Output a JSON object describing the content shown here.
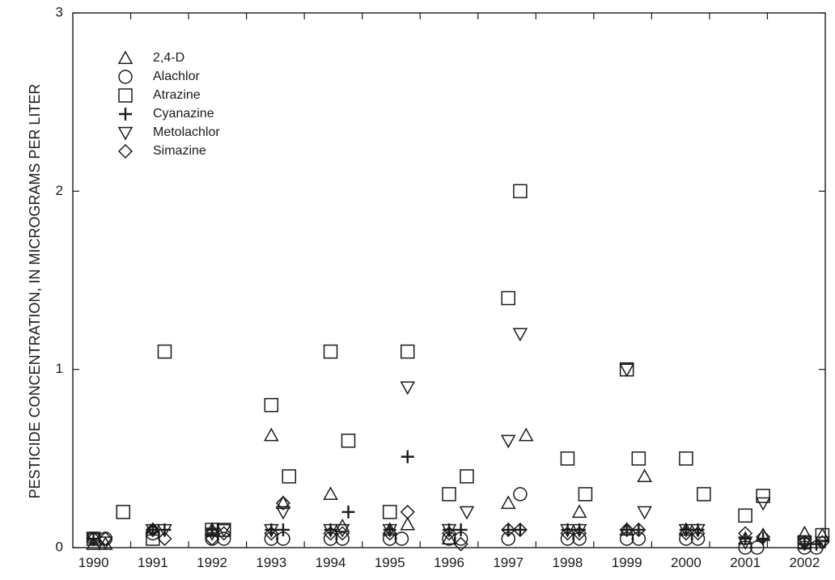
{
  "chart_data": {
    "type": "scatter",
    "title": "",
    "xlabel": "",
    "ylabel": "PESTICIDE CONCENTRATION, IN MICROGRAMS PER LITER",
    "ylim": [
      0,
      3
    ],
    "yticks": [
      0,
      1,
      2,
      3
    ],
    "xlim": [
      1989.65,
      2002.35
    ],
    "xticks": [
      1990,
      1991,
      1992,
      1993,
      1994,
      1995,
      1996,
      1997,
      1998,
      1999,
      2000,
      2001,
      2002
    ],
    "grid": false,
    "legend_position": "top-left",
    "series": [
      {
        "name": "2,4-D",
        "marker": "triangle-up",
        "points": [
          [
            1990.0,
            0.02
          ],
          [
            1990.2,
            0.02
          ],
          [
            1991.0,
            0.1
          ],
          [
            1992.0,
            0.1
          ],
          [
            1993.0,
            0.63
          ],
          [
            1993.2,
            0.25
          ],
          [
            1994.0,
            0.3
          ],
          [
            1994.2,
            0.12
          ],
          [
            1995.0,
            0.1
          ],
          [
            1995.3,
            0.13
          ],
          [
            1996.0,
            0.05
          ],
          [
            1997.0,
            0.25
          ],
          [
            1997.3,
            0.63
          ],
          [
            1998.2,
            0.2
          ],
          [
            1999.0,
            0.1
          ],
          [
            1999.3,
            0.4
          ],
          [
            2000.0,
            0.1
          ],
          [
            2001.0,
            0.05
          ],
          [
            2001.3,
            0.07
          ],
          [
            2002.0,
            0.08
          ],
          [
            2002.3,
            0.07
          ]
        ]
      },
      {
        "name": "Alachlor",
        "marker": "circle",
        "points": [
          [
            1990.0,
            0.05
          ],
          [
            1990.2,
            0.05
          ],
          [
            1991.0,
            0.08
          ],
          [
            1992.0,
            0.05
          ],
          [
            1992.2,
            0.05
          ],
          [
            1993.0,
            0.05
          ],
          [
            1993.2,
            0.05
          ],
          [
            1994.0,
            0.05
          ],
          [
            1994.2,
            0.05
          ],
          [
            1995.0,
            0.05
          ],
          [
            1995.2,
            0.05
          ],
          [
            1996.0,
            0.05
          ],
          [
            1996.2,
            0.05
          ],
          [
            1997.0,
            0.05
          ],
          [
            1997.2,
            0.3
          ],
          [
            1998.0,
            0.05
          ],
          [
            1998.2,
            0.05
          ],
          [
            1999.0,
            0.05
          ],
          [
            1999.2,
            0.05
          ],
          [
            2000.0,
            0.05
          ],
          [
            2000.2,
            0.05
          ],
          [
            2001.0,
            0.0
          ],
          [
            2001.2,
            0.0
          ],
          [
            2002.0,
            0.0
          ],
          [
            2002.2,
            0.0
          ]
        ]
      },
      {
        "name": "Atrazine",
        "marker": "square",
        "points": [
          [
            1990.0,
            0.05
          ],
          [
            1990.5,
            0.2
          ],
          [
            1991.0,
            0.05
          ],
          [
            1991.2,
            1.1
          ],
          [
            1992.0,
            0.1
          ],
          [
            1992.2,
            0.1
          ],
          [
            1993.0,
            0.8
          ],
          [
            1993.3,
            0.4
          ],
          [
            1994.0,
            1.1
          ],
          [
            1994.3,
            0.6
          ],
          [
            1995.0,
            0.2
          ],
          [
            1995.3,
            1.1
          ],
          [
            1996.0,
            0.3
          ],
          [
            1996.3,
            0.4
          ],
          [
            1997.0,
            1.4
          ],
          [
            1997.2,
            2.0
          ],
          [
            1998.0,
            0.5
          ],
          [
            1998.3,
            0.3
          ],
          [
            1999.0,
            1.0
          ],
          [
            1999.2,
            0.5
          ],
          [
            2000.0,
            0.5
          ],
          [
            2000.3,
            0.3
          ],
          [
            2001.0,
            0.18
          ],
          [
            2001.3,
            0.29
          ],
          [
            2002.0,
            0.03
          ],
          [
            2002.3,
            0.07
          ]
        ]
      },
      {
        "name": "Cyanazine",
        "marker": "plus",
        "points": [
          [
            1990.0,
            0.05
          ],
          [
            1991.0,
            0.1
          ],
          [
            1991.2,
            0.1
          ],
          [
            1992.0,
            0.1
          ],
          [
            1993.0,
            0.1
          ],
          [
            1993.2,
            0.1
          ],
          [
            1994.0,
            0.1
          ],
          [
            1994.3,
            0.2
          ],
          [
            1995.0,
            0.1
          ],
          [
            1995.3,
            0.51
          ],
          [
            1996.0,
            0.1
          ],
          [
            1996.2,
            0.1
          ],
          [
            1997.0,
            0.1
          ],
          [
            1997.2,
            0.1
          ],
          [
            1998.0,
            0.1
          ],
          [
            1998.2,
            0.1
          ],
          [
            1999.0,
            0.1
          ],
          [
            1999.2,
            0.1
          ],
          [
            2000.0,
            0.1
          ],
          [
            2000.2,
            0.1
          ],
          [
            2001.0,
            0.05
          ],
          [
            2001.3,
            0.05
          ],
          [
            2002.0,
            0.02
          ],
          [
            2002.2,
            0.02
          ]
        ]
      },
      {
        "name": "Metolachlor",
        "marker": "triangle-down",
        "points": [
          [
            1990.0,
            0.05
          ],
          [
            1990.2,
            0.03
          ],
          [
            1991.0,
            0.1
          ],
          [
            1991.2,
            0.1
          ],
          [
            1992.0,
            0.08
          ],
          [
            1992.2,
            0.1
          ],
          [
            1993.0,
            0.1
          ],
          [
            1993.2,
            0.2
          ],
          [
            1994.0,
            0.1
          ],
          [
            1994.2,
            0.1
          ],
          [
            1995.0,
            0.1
          ],
          [
            1995.3,
            0.9
          ],
          [
            1996.0,
            0.1
          ],
          [
            1996.3,
            0.2
          ],
          [
            1997.0,
            0.6
          ],
          [
            1997.2,
            1.2
          ],
          [
            1998.0,
            0.1
          ],
          [
            1998.2,
            0.1
          ],
          [
            1999.0,
            1.0
          ],
          [
            1999.3,
            0.2
          ],
          [
            2000.0,
            0.1
          ],
          [
            2000.2,
            0.1
          ],
          [
            2001.0,
            0.03
          ],
          [
            2001.3,
            0.25
          ],
          [
            2002.0,
            0.03
          ],
          [
            2002.3,
            0.03
          ]
        ]
      },
      {
        "name": "Simazine",
        "marker": "diamond",
        "points": [
          [
            1990.0,
            0.05
          ],
          [
            1990.2,
            0.05
          ],
          [
            1991.0,
            0.1
          ],
          [
            1991.2,
            0.05
          ],
          [
            1992.0,
            0.05
          ],
          [
            1992.2,
            0.08
          ],
          [
            1993.0,
            0.08
          ],
          [
            1993.2,
            0.25
          ],
          [
            1994.0,
            0.08
          ],
          [
            1994.2,
            0.08
          ],
          [
            1995.0,
            0.08
          ],
          [
            1995.3,
            0.2
          ],
          [
            1996.0,
            0.08
          ],
          [
            1996.2,
            0.02
          ],
          [
            1997.0,
            0.1
          ],
          [
            1997.2,
            0.1
          ],
          [
            1998.0,
            0.08
          ],
          [
            1998.2,
            0.08
          ],
          [
            1999.0,
            0.1
          ],
          [
            1999.2,
            0.1
          ],
          [
            2000.0,
            0.08
          ],
          [
            2000.2,
            0.08
          ],
          [
            2001.0,
            0.08
          ],
          [
            2001.3,
            0.06
          ],
          [
            2002.0,
            0.03
          ],
          [
            2002.3,
            0.03
          ]
        ]
      }
    ]
  }
}
